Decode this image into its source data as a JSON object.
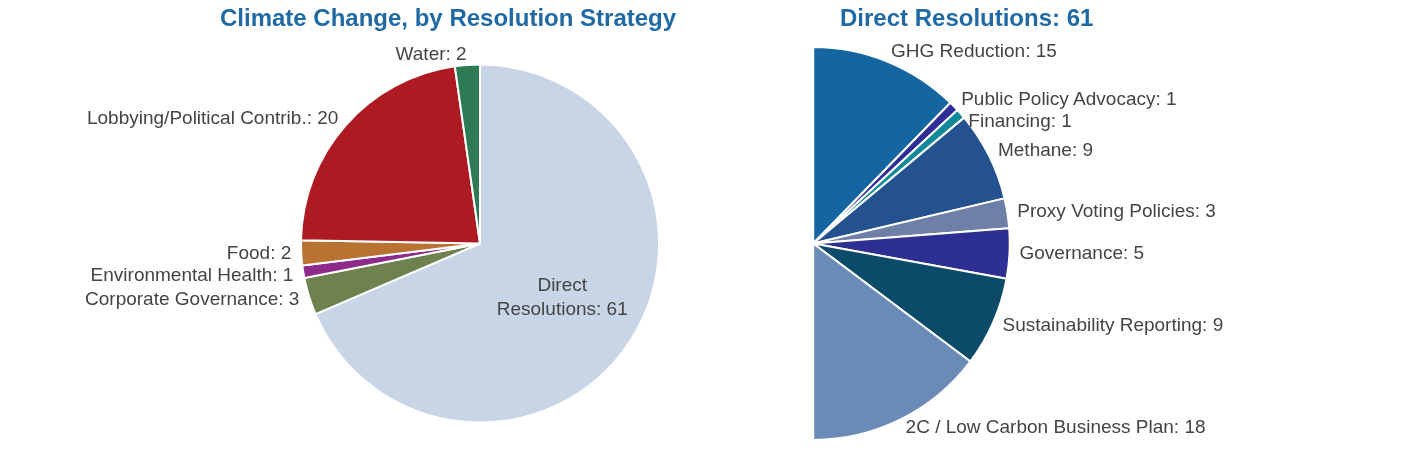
{
  "chart_data": [
    {
      "type": "pie",
      "title": "Climate Change, by Resolution Strategy",
      "categories": [
        "Direct Resolutions: 61",
        "Corporate Governance: 3",
        "Environmental Health: 1",
        "Food: 2",
        "Lobbying/Political Contrib.: 20",
        "Water: 2"
      ],
      "values": [
        61,
        3,
        1,
        2,
        20,
        2
      ],
      "colors": [
        "#c7d5e6",
        "#6e8250",
        "#8e2a8a",
        "#b87333",
        "#ad1a22",
        "#2e7a55"
      ],
      "legend": false
    },
    {
      "type": "pie",
      "title": "Direct Resolutions: 61",
      "categories": [
        "GHG Reduction: 15",
        "Public Policy Advocacy: 1",
        "Financing: 1",
        "Methane: 9",
        "Proxy Voting Policies: 3",
        "Governance: 5",
        "Sustainability Reporting: 9",
        "2C / Low Carbon Business Plan: 18"
      ],
      "values": [
        15,
        1,
        1,
        9,
        3,
        5,
        9,
        18
      ],
      "colors": [
        "#1565a0",
        "#2e2e96",
        "#108a9a",
        "#24528f",
        "#6e7fa8",
        "#2d2f92",
        "#0c4a6a",
        "#6a8bb8"
      ],
      "legend": false
    }
  ]
}
